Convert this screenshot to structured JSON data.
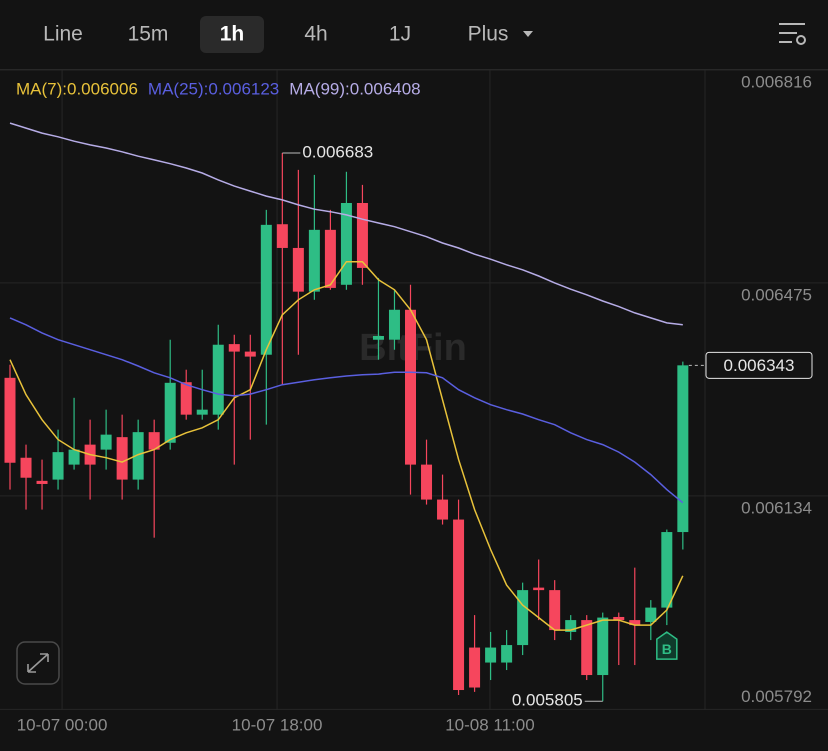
{
  "toolbar": {
    "items": [
      "Line",
      "15m",
      "1h",
      "4h",
      "1J",
      "Plus"
    ],
    "active": 2
  },
  "chart_data": {
    "type": "candlestick",
    "watermark": "BitFin",
    "buy_marker": "B",
    "ylim": [
      0.005791,
      0.006816
    ],
    "yticks": [
      0.006816,
      0.006475,
      0.006134,
      0.005792
    ],
    "xticks": [
      {
        "value": 3.25,
        "label": "10-07 00:00"
      },
      {
        "value": 16.67,
        "label": "10-07 18:00"
      },
      {
        "value": 29.96,
        "label": "10-08 11:00"
      }
    ],
    "up_color": "#2ebd85",
    "down_color": "#f6465d",
    "open": [
      0.006323,
      0.006195,
      0.006158,
      0.00616,
      0.006184,
      0.006216,
      0.006208,
      0.006228,
      0.00616,
      0.006236,
      0.006219,
      0.006316,
      0.006264,
      0.006264,
      0.006377,
      0.006365,
      0.00636,
      0.006569,
      0.006531,
      0.006461,
      0.00656,
      0.006472,
      0.006603,
      0.006384,
      0.006384,
      0.006432,
      0.006184,
      0.006128,
      0.006096,
      0.005891,
      0.005867,
      0.005867,
      0.005895,
      0.005987,
      0.005983,
      0.005916,
      0.005935,
      0.005847,
      0.00594,
      0.005935,
      0.005932,
      0.005955,
      0.006076
    ],
    "high": [
      0.006344,
      0.006216,
      0.006192,
      0.00624,
      0.006291,
      0.006256,
      0.006272,
      0.006264,
      0.006256,
      0.006256,
      0.006384,
      0.006336,
      0.006336,
      0.006408,
      0.006392,
      0.006392,
      0.006592,
      0.006683,
      0.006656,
      0.006648,
      0.006592,
      0.006653,
      0.006632,
      0.006483,
      0.006464,
      0.006472,
      0.006224,
      0.006168,
      0.006128,
      0.005943,
      0.005916,
      0.005919,
      0.005995,
      0.006032,
      0.005999,
      0.005943,
      0.005943,
      0.005947,
      0.005947,
      0.006019,
      0.005967,
      0.00608,
      0.006349
    ],
    "low": [
      0.006144,
      0.006112,
      0.006112,
      0.006144,
      0.006176,
      0.006128,
      0.006176,
      0.006128,
      0.006144,
      0.006067,
      0.006208,
      0.006256,
      0.006256,
      0.00624,
      0.006184,
      0.006224,
      0.006248,
      0.006312,
      0.00636,
      0.006448,
      0.006464,
      0.006464,
      0.006472,
      0.006352,
      0.006368,
      0.006136,
      0.00612,
      0.006088,
      0.005815,
      0.00582,
      0.005839,
      0.005855,
      0.005879,
      0.005935,
      0.005903,
      0.005903,
      0.005839,
      0.005805,
      0.005863,
      0.005863,
      0.005903,
      0.005927,
      0.006048
    ],
    "close": [
      0.006187,
      0.006163,
      0.006153,
      0.006204,
      0.006208,
      0.006184,
      0.006232,
      0.00616,
      0.006236,
      0.006208,
      0.006315,
      0.006264,
      0.006272,
      0.006376,
      0.006365,
      0.006357,
      0.006568,
      0.006531,
      0.006461,
      0.00656,
      0.006467,
      0.006603,
      0.006499,
      0.00639,
      0.006432,
      0.006184,
      0.006128,
      0.006096,
      0.005823,
      0.005827,
      0.005891,
      0.005895,
      0.005983,
      0.005983,
      0.005919,
      0.005935,
      0.005847,
      0.005939,
      0.005935,
      0.005927,
      0.005955,
      0.006076,
      0.006343
    ],
    "series": [
      {
        "name": "MA(7):0.006006",
        "color": "#e8c23a",
        "values": [
          0.006352,
          0.006296,
          0.006256,
          0.006224,
          0.006208,
          0.0062,
          0.006195,
          0.006188,
          0.0062,
          0.006208,
          0.006224,
          0.006235,
          0.006243,
          0.006256,
          0.006291,
          0.006304,
          0.006368,
          0.006424,
          0.006448,
          0.006464,
          0.006472,
          0.006509,
          0.006509,
          0.00648,
          0.006464,
          0.006432,
          0.006384,
          0.006288,
          0.006192,
          0.006112,
          0.006048,
          0.005991,
          0.005959,
          0.005939,
          0.005919,
          0.005919,
          0.005927,
          0.005935,
          0.005935,
          0.005927,
          0.005927,
          0.005951,
          0.006006
        ]
      },
      {
        "name": "MA(25):0.006123",
        "color": "#5a5fe0",
        "values": [
          0.006419,
          0.006408,
          0.006395,
          0.006384,
          0.006376,
          0.006368,
          0.00636,
          0.006352,
          0.006342,
          0.006331,
          0.006323,
          0.006312,
          0.006304,
          0.006297,
          0.006294,
          0.006297,
          0.006304,
          0.006312,
          0.006316,
          0.00632,
          0.006323,
          0.006326,
          0.006328,
          0.006329,
          0.006332,
          0.006332,
          0.006331,
          0.006323,
          0.006304,
          0.006291,
          0.00628,
          0.006272,
          0.006265,
          0.006256,
          0.006248,
          0.006235,
          0.006224,
          0.006216,
          0.006204,
          0.006188,
          0.006168,
          0.006144,
          0.006123
        ]
      },
      {
        "name": "MA(99):0.006408",
        "color": "#b6ace6",
        "values": [
          0.006731,
          0.006723,
          0.006715,
          0.006709,
          0.006702,
          0.006696,
          0.006691,
          0.006685,
          0.006678,
          0.006672,
          0.006666,
          0.006659,
          0.006651,
          0.00664,
          0.00663,
          0.006622,
          0.006614,
          0.006608,
          0.0066,
          0.006593,
          0.006589,
          0.006584,
          0.006577,
          0.006571,
          0.006565,
          0.006557,
          0.006549,
          0.006539,
          0.006531,
          0.006521,
          0.006513,
          0.006504,
          0.006496,
          0.006486,
          0.006475,
          0.006465,
          0.006456,
          0.006446,
          0.006437,
          0.006427,
          0.006419,
          0.006411,
          0.006408
        ]
      }
    ],
    "grid": true
  }
}
